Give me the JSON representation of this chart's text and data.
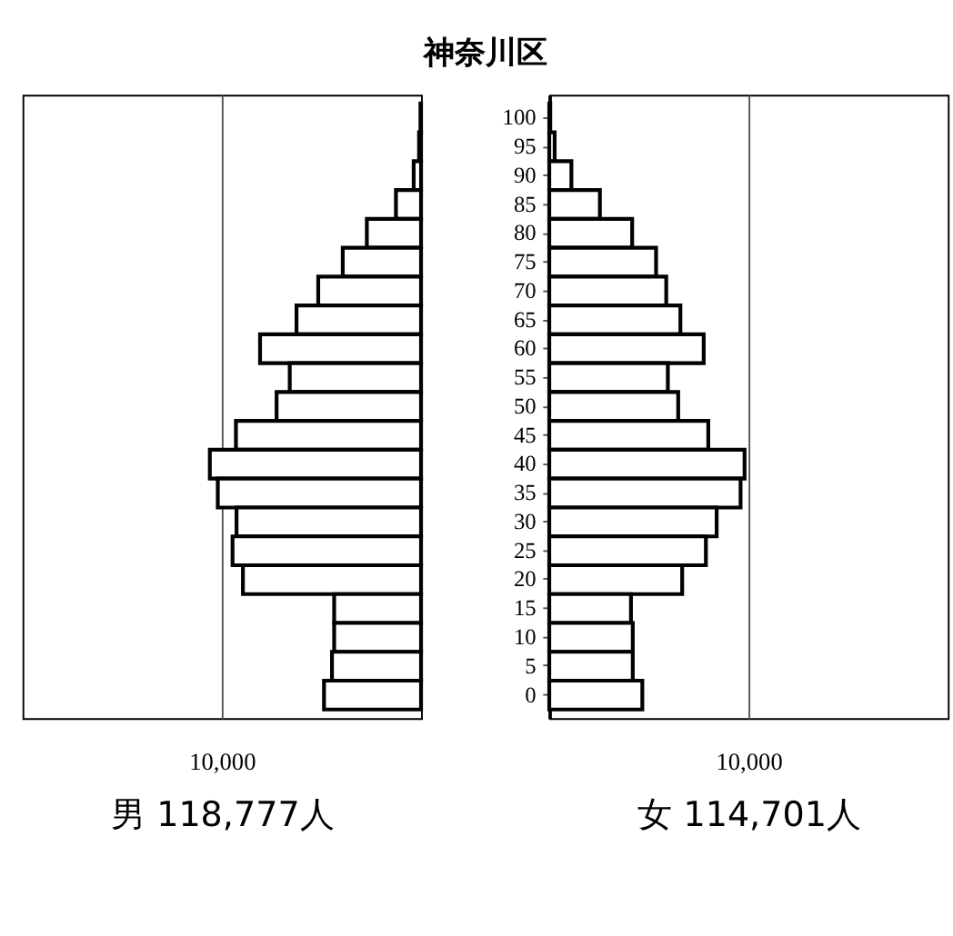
{
  "chart_data": [
    {
      "type": "bar",
      "orientation": "horizontal",
      "title": "神奈川区",
      "xlabel": "男 118,777人",
      "tick_labels": "x",
      "grid": "x",
      "categories": [
        "100",
        "95",
        "90",
        "85",
        "80",
        "75",
        "70",
        "65",
        "60",
        "55",
        "50",
        "45",
        "40",
        "35",
        "30",
        "25",
        "20",
        "15",
        "10",
        "5",
        "0"
      ],
      "values": [
        30,
        100,
        370,
        1260,
        2720,
        3930,
        5160,
        6250,
        8080,
        6590,
        7250,
        9290,
        10600,
        10200,
        9260,
        9460,
        8940,
        4360,
        4360,
        4470,
        4870
      ],
      "color": "#ffffff",
      "xlim": [
        20000,
        0
      ],
      "xticks": [
        {
          "value": 10000,
          "label": "10,000"
        }
      ]
    },
    {
      "type": "bar",
      "orientation": "horizontal",
      "xlabel": "女 114,701人",
      "grid": "x",
      "categories": [
        "100",
        "95",
        "90",
        "85",
        "80",
        "75",
        "70",
        "65",
        "60",
        "55",
        "50",
        "45",
        "40",
        "35",
        "30",
        "25",
        "20",
        "15",
        "10",
        "5",
        "0"
      ],
      "values": [
        50,
        270,
        1110,
        2540,
        4160,
        5360,
        5870,
        6580,
        7750,
        5950,
        6470,
        7980,
        9800,
        9600,
        8400,
        7860,
        6670,
        4100,
        4190,
        4190,
        4670
      ],
      "color": "#ffffff",
      "xlim": [
        0,
        20000
      ],
      "xticks": [
        {
          "value": 10000,
          "label": "10,000"
        }
      ]
    }
  ]
}
